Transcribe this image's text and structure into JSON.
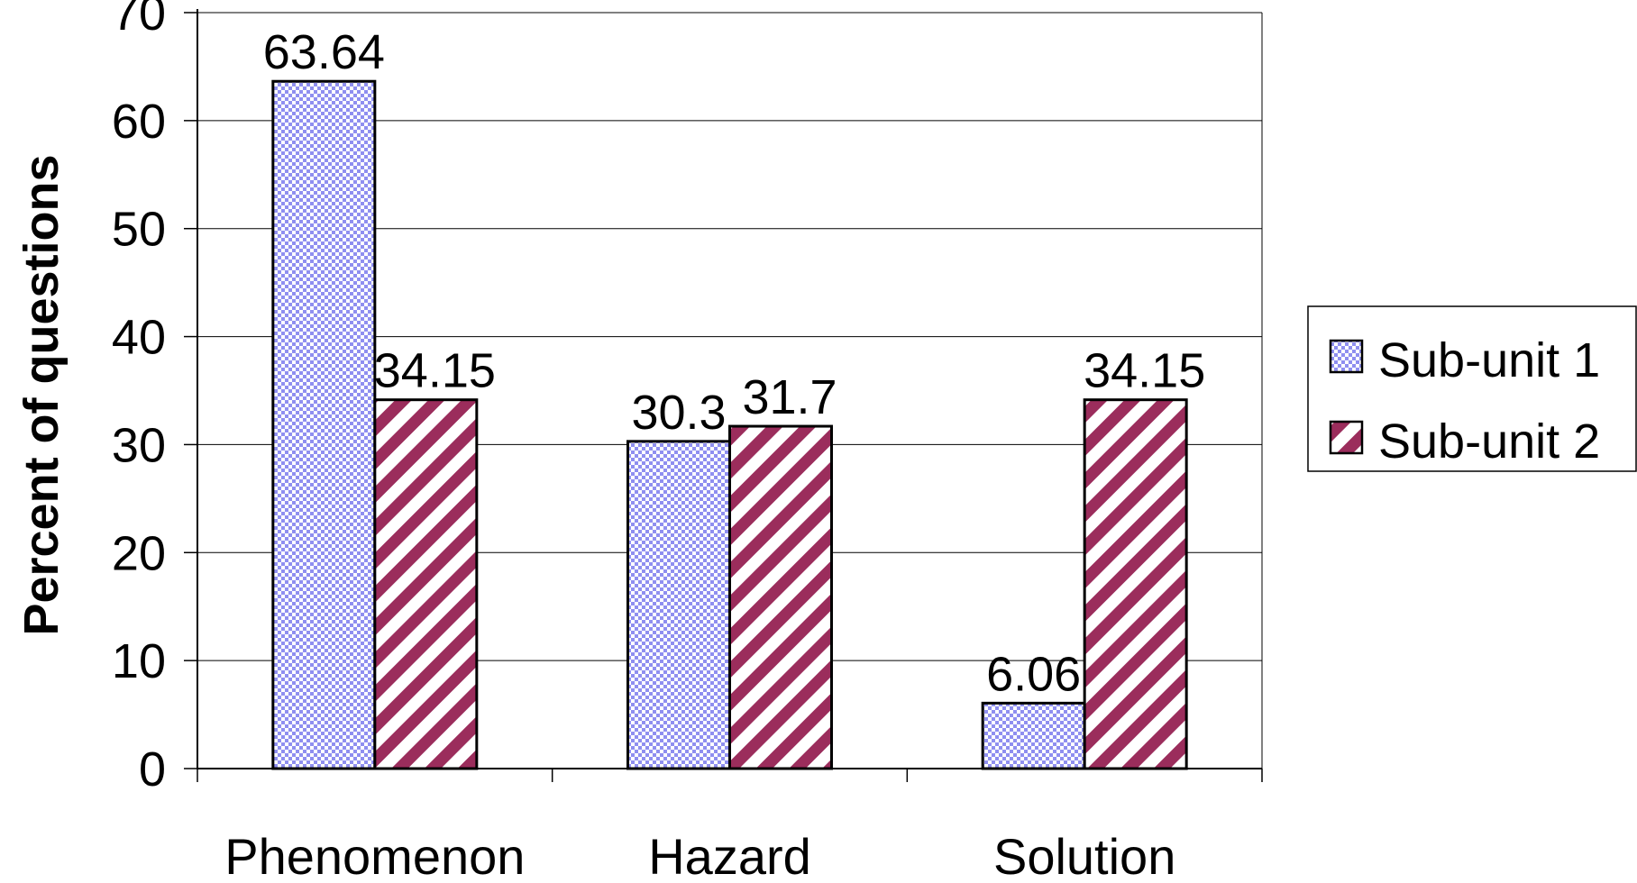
{
  "chart_data": {
    "type": "bar",
    "categories": [
      "Phenomenon",
      "Hazard",
      "Solution"
    ],
    "series": [
      {
        "name": "Sub-unit 1",
        "values": [
          63.64,
          30.3,
          6.06
        ],
        "labels": [
          "63.64",
          "30.3",
          "6.06"
        ],
        "fill_pattern": "checkered",
        "color": "#8f8ff0"
      },
      {
        "name": "Sub-unit 2",
        "values": [
          34.15,
          31.7,
          34.15
        ],
        "labels": [
          "34.15",
          "31.7",
          "34.15"
        ],
        "fill_pattern": "diagonal-stripes",
        "color": "#9b2d5c"
      }
    ],
    "title": "",
    "xlabel": "",
    "ylabel": "Percent of questions",
    "ylim": [
      0,
      70
    ],
    "yticks": [
      "0",
      "10",
      "20",
      "30",
      "40",
      "50",
      "60",
      "70"
    ],
    "grid": true,
    "legend_position": "right"
  }
}
